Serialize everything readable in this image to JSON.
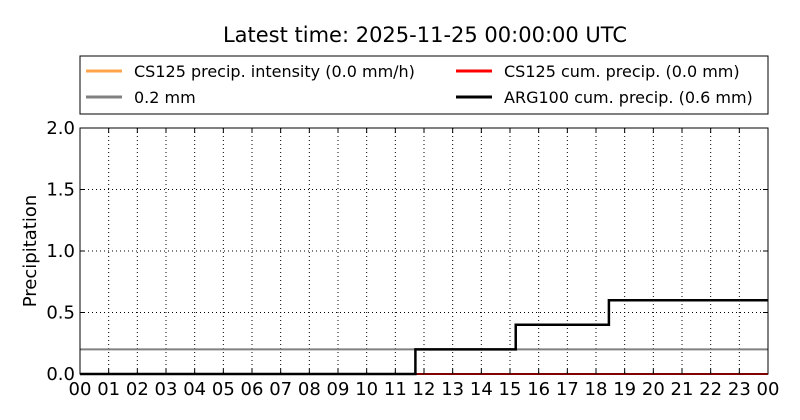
{
  "title": "Latest time: 2025-11-25 00:00:00 UTC",
  "chart_data": {
    "type": "line",
    "title": "Latest time: 2025-11-25 00:00:00 UTC",
    "xlabel": "",
    "ylabel": "Precipitation",
    "xlim": [
      0,
      24
    ],
    "ylim": [
      0,
      2.0
    ],
    "x_ticks": [
      "00",
      "01",
      "02",
      "03",
      "04",
      "05",
      "06",
      "07",
      "08",
      "09",
      "10",
      "11",
      "12",
      "13",
      "14",
      "15",
      "16",
      "17",
      "18",
      "19",
      "20",
      "21",
      "22",
      "23",
      "00"
    ],
    "y_ticks": [
      "0.0",
      "0.5",
      "1.0",
      "1.5",
      "2.0"
    ],
    "grid": true,
    "legend_position": "top",
    "series": [
      {
        "name": "CS125 precip. intensity (0.0 mm/h)",
        "color": "#ffa64d",
        "step": false,
        "x": [
          0,
          24
        ],
        "y": [
          0.0,
          0.0
        ]
      },
      {
        "name": "CS125 cum. precip. (0.0 mm)",
        "color": "#ff0000",
        "step": false,
        "x": [
          0,
          24
        ],
        "y": [
          0.0,
          0.0
        ]
      },
      {
        "name": "0.2 mm",
        "color": "#808080",
        "step": false,
        "x": [
          0,
          24
        ],
        "y": [
          0.2,
          0.2
        ]
      },
      {
        "name": "ARG100 cum. precip. (0.6 mm)",
        "color": "#000000",
        "step": true,
        "x": [
          0,
          11.7,
          15.2,
          18.45,
          24
        ],
        "y": [
          0.0,
          0.2,
          0.4,
          0.6,
          0.6
        ]
      }
    ],
    "legend": [
      {
        "label": "CS125 precip. intensity (0.0 mm/h)",
        "color": "#ffa64d"
      },
      {
        "label": "CS125 cum. precip. (0.0 mm)",
        "color": "#ff0000"
      },
      {
        "label": "0.2 mm",
        "color": "#808080"
      },
      {
        "label": "ARG100 cum. precip. (0.6 mm)",
        "color": "#000000"
      }
    ]
  }
}
